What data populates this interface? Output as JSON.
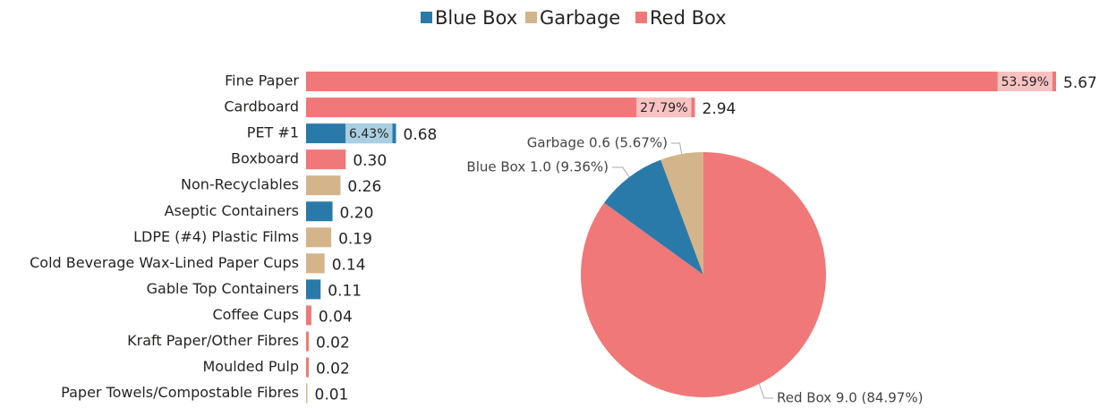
{
  "chart_data": [
    {
      "type": "hbar",
      "categories": [
        "Fine Paper",
        "Cardboard",
        "PET #1",
        "Boxboard",
        "Non-Recyclables",
        "Aseptic Containers",
        "LDPE (#4) Plastic Films",
        "Cold Beverage Wax-Lined Paper Cups",
        "Gable Top Containers",
        "Coffee Cups",
        "Kraft Paper/Other Fibres",
        "Moulded Pulp",
        "Paper Towels/Compostable Fibres"
      ],
      "series": [
        {
          "name": "Blue Box",
          "color": "#2a7aa9",
          "highlight": "#a9cfe0",
          "values": [
            null,
            null,
            0.68,
            null,
            null,
            0.2,
            null,
            null,
            0.11,
            null,
            null,
            null,
            null
          ],
          "value_labels": [
            null,
            null,
            "0.68",
            null,
            null,
            "0.20",
            null,
            null,
            "0.11",
            null,
            null,
            null,
            null
          ],
          "share_labels": [
            null,
            null,
            "6.43%",
            null,
            null,
            null,
            null,
            null,
            null,
            null,
            null,
            null,
            null
          ]
        },
        {
          "name": "Garbage",
          "color": "#d4b48a",
          "highlight": "#ecdcc4",
          "values": [
            null,
            null,
            null,
            null,
            0.26,
            null,
            0.19,
            0.14,
            null,
            null,
            null,
            null,
            0.01
          ],
          "value_labels": [
            null,
            null,
            null,
            null,
            "0.26",
            null,
            "0.19",
            "0.14",
            null,
            null,
            null,
            null,
            "0.01"
          ],
          "share_labels": [
            null,
            null,
            null,
            null,
            null,
            null,
            null,
            null,
            null,
            null,
            null,
            null,
            null
          ]
        },
        {
          "name": "Red Box",
          "color": "#f07878",
          "highlight": "#f8c2c2",
          "values": [
            5.67,
            2.94,
            null,
            0.3,
            null,
            null,
            null,
            null,
            null,
            0.04,
            0.02,
            0.02,
            null
          ],
          "value_labels": [
            "5.67",
            "2.94",
            null,
            "0.30",
            null,
            null,
            null,
            null,
            null,
            "0.04",
            "0.02",
            "0.02",
            null
          ],
          "share_labels": [
            "53.59%",
            "27.79%",
            null,
            null,
            null,
            null,
            null,
            null,
            null,
            null,
            null,
            null,
            null
          ]
        }
      ]
    },
    {
      "type": "pie",
      "categories": [
        "Red Box",
        "Blue Box",
        "Garbage"
      ],
      "values": [
        84.97,
        9.36,
        5.67
      ],
      "labels": [
        "Red Box 9.0 (84.97%)",
        "Blue Box 1.0 (9.36%)",
        "Garbage 0.6 (5.67%)"
      ],
      "colors": [
        "#f07878",
        "#2a7aa9",
        "#d4b48a"
      ]
    }
  ]
}
